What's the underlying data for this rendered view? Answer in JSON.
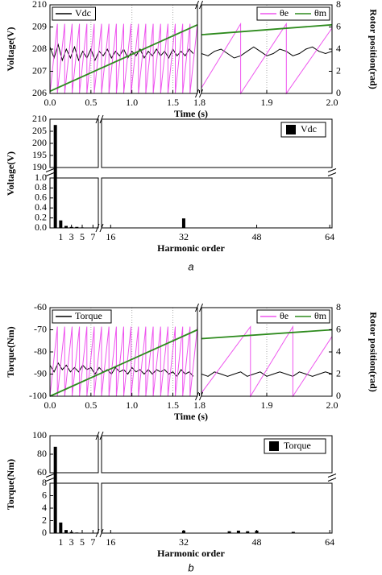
{
  "chart_data": [
    {
      "type": "line",
      "xlabel": "Time (s)",
      "ylabel": "Voltage(V)",
      "y2label": "Rotor position(rad)",
      "xsegments": [
        [
          0,
          1.8
        ],
        [
          1.8,
          2.0
        ]
      ],
      "xticks": [
        {
          "value": 0,
          "label": "0.0"
        },
        0.5,
        {
          "value": 1,
          "label": "1.0"
        },
        1.5,
        1.8,
        1.9,
        {
          "value": 2,
          "label": "2.0"
        }
      ],
      "ylim": [
        206,
        210
      ],
      "yticks": [
        206,
        207,
        208,
        209,
        210
      ],
      "y2lim": [
        0,
        8
      ],
      "y2ticks": [
        0,
        2,
        4,
        6,
        8
      ],
      "grid": "x",
      "series": [
        {
          "name": "Vdc",
          "color": "#000000",
          "axis": "y",
          "x": [
            0,
            0.05,
            0.1,
            0.15,
            0.2,
            0.25,
            0.3,
            0.35,
            0.4,
            0.45,
            0.5,
            0.55,
            0.6,
            0.65,
            0.7,
            0.75,
            0.8,
            0.85,
            0.9,
            0.95,
            1.0,
            1.05,
            1.1,
            1.15,
            1.2,
            1.25,
            1.3,
            1.35,
            1.4,
            1.45,
            1.5,
            1.55,
            1.6,
            1.65,
            1.7,
            1.75,
            1.8,
            1.8,
            1.81,
            1.82,
            1.83,
            1.84,
            1.85,
            1.86,
            1.87,
            1.88,
            1.89,
            1.9,
            1.91,
            1.92,
            1.93,
            1.94,
            1.95,
            1.96,
            1.97,
            1.98,
            1.99,
            2.0
          ],
          "values": [
            208.1,
            207.6,
            208.2,
            207.5,
            208.0,
            207.6,
            208.1,
            207.5,
            207.9,
            207.6,
            208.0,
            207.5,
            207.9,
            207.7,
            208.0,
            207.6,
            207.9,
            207.7,
            208.0,
            207.6,
            207.9,
            207.7,
            208.0,
            207.6,
            207.9,
            207.7,
            208.0,
            207.7,
            207.9,
            207.6,
            208.0,
            207.7,
            207.9,
            207.7,
            208.0,
            207.8,
            null,
            207.8,
            207.7,
            207.9,
            208.0,
            207.8,
            207.6,
            207.7,
            207.9,
            208.1,
            207.9,
            207.7,
            207.8,
            208.0,
            207.9,
            207.7,
            207.8,
            208.0,
            208.1,
            207.9,
            207.8,
            207.9
          ]
        },
        {
          "name": "θe",
          "color": "#ee55ee",
          "axis": "y2",
          "x": [
            0,
            0.09,
            0.09,
            0.18,
            0.18,
            0.27,
            0.27,
            0.36,
            0.36,
            0.45,
            0.45,
            0.54,
            0.54,
            0.63,
            0.63,
            0.72,
            0.72,
            0.81,
            0.81,
            0.9,
            0.9,
            0.99,
            0.99,
            1.08,
            1.08,
            1.17,
            1.17,
            1.26,
            1.26,
            1.35,
            1.35,
            1.44,
            1.44,
            1.53,
            1.53,
            1.62,
            1.62,
            1.71,
            1.71,
            1.8,
            1.8,
            1.8,
            1.86,
            1.86,
            1.93,
            1.93,
            2.0
          ],
          "values": [
            0,
            6.28,
            0,
            6.28,
            0,
            6.28,
            0,
            6.28,
            0,
            6.28,
            0,
            6.28,
            0,
            6.28,
            0,
            6.28,
            0,
            6.28,
            0,
            6.28,
            0,
            6.28,
            0,
            6.28,
            0,
            6.28,
            0,
            6.28,
            0,
            6.28,
            0,
            6.28,
            0,
            6.28,
            0,
            6.28,
            0,
            6.28,
            0,
            6.28,
            null,
            0.5,
            6.28,
            0,
            6.28,
            0,
            5.9
          ]
        },
        {
          "name": "θm",
          "color": "#2e8b1e",
          "axis": "y2",
          "x": [
            0,
            1.8,
            1.8,
            1.8,
            2.0
          ],
          "values": [
            0.2,
            6.2,
            null,
            5.3,
            6.2
          ]
        }
      ]
    },
    {
      "type": "bar",
      "xlabel": "Harmonic order",
      "ylabel": "Voltage(V)",
      "xsegments": [
        [
          -1,
          8
        ],
        [
          14,
          64.5
        ]
      ],
      "xticks": [
        1,
        3,
        5,
        7,
        16,
        32,
        48,
        64
      ],
      "ysegments": [
        [
          0,
          1
        ],
        [
          190,
          210
        ]
      ],
      "yticks": [
        {
          "value": 0,
          "label": "0.0"
        },
        0.2,
        0.4,
        0.6,
        0.8,
        {
          "value": 1,
          "label": "1.0"
        },
        190,
        195,
        200,
        205,
        210
      ],
      "series": [
        {
          "name": "Vdc",
          "color": "#000000",
          "x": [
            0,
            1,
            2,
            3,
            4,
            5,
            6,
            7,
            16,
            20,
            24,
            28,
            32,
            36,
            40,
            44,
            48,
            52,
            56,
            60,
            64
          ],
          "values": [
            207.6,
            0.15,
            0.04,
            0.02,
            0.02,
            0.01,
            0.005,
            0.005,
            0.005,
            0.005,
            0.005,
            0.005,
            0.19,
            0.005,
            0.005,
            0.005,
            0.005,
            0.005,
            0.005,
            0.005,
            0.005
          ]
        }
      ]
    },
    {
      "type": "line",
      "xlabel": "Time (s)",
      "ylabel": "Torque(Nm)",
      "y2label": "Rotor position(rad)",
      "xsegments": [
        [
          0,
          1.8
        ],
        [
          1.8,
          2.0
        ]
      ],
      "xticks": [
        {
          "value": 0,
          "label": "0.0"
        },
        0.5,
        {
          "value": 1,
          "label": "1.0"
        },
        1.5,
        1.8,
        1.9,
        {
          "value": 2,
          "label": "2.0"
        }
      ],
      "ylim": [
        -100,
        -60
      ],
      "yticks": [
        -100,
        -90,
        -80,
        -70,
        -60
      ],
      "y2lim": [
        0,
        8
      ],
      "y2ticks": [
        0,
        2,
        4,
        6,
        8
      ],
      "grid": "x",
      "series": [
        {
          "name": "Torque",
          "color": "#000000",
          "axis": "y",
          "x": [
            0,
            0.05,
            0.1,
            0.15,
            0.2,
            0.25,
            0.3,
            0.35,
            0.4,
            0.45,
            0.5,
            0.55,
            0.6,
            0.65,
            0.7,
            0.75,
            0.8,
            0.85,
            0.9,
            0.95,
            1.0,
            1.05,
            1.1,
            1.15,
            1.2,
            1.25,
            1.3,
            1.35,
            1.4,
            1.45,
            1.5,
            1.55,
            1.6,
            1.65,
            1.7,
            1.75,
            1.8,
            1.8,
            1.81,
            1.82,
            1.83,
            1.84,
            1.85,
            1.86,
            1.87,
            1.88,
            1.89,
            1.9,
            1.91,
            1.92,
            1.93,
            1.94,
            1.95,
            1.96,
            1.97,
            1.98,
            1.99,
            2.0
          ],
          "values": [
            -86,
            -89,
            -85,
            -88,
            -86,
            -89,
            -87,
            -89,
            -86,
            -88,
            -87,
            -90,
            -87,
            -89,
            -88,
            -90,
            -87,
            -89,
            -88,
            -90,
            -87,
            -89,
            -88,
            -90,
            -88,
            -90,
            -88,
            -89,
            -88,
            -90,
            -89,
            -91,
            -88,
            -90,
            -89,
            -91,
            null,
            -90,
            -91,
            -89,
            -90,
            -91,
            -90,
            -89,
            -91,
            -90,
            -89,
            -91,
            -90,
            -89,
            -90,
            -91,
            -89,
            -90,
            -91,
            -90,
            -89,
            -90
          ]
        },
        {
          "name": "θe",
          "color": "#ee55ee",
          "axis": "y2",
          "x": [
            0,
            0.09,
            0.09,
            0.18,
            0.18,
            0.27,
            0.27,
            0.36,
            0.36,
            0.45,
            0.45,
            0.54,
            0.54,
            0.63,
            0.63,
            0.72,
            0.72,
            0.81,
            0.81,
            0.9,
            0.9,
            0.99,
            0.99,
            1.08,
            1.08,
            1.17,
            1.17,
            1.26,
            1.26,
            1.35,
            1.35,
            1.44,
            1.44,
            1.53,
            1.53,
            1.62,
            1.62,
            1.71,
            1.71,
            1.8,
            1.8,
            1.8,
            1.875,
            1.875,
            1.94,
            1.94,
            2.0
          ],
          "values": [
            0,
            6.28,
            0,
            6.28,
            0,
            6.28,
            0,
            6.28,
            0,
            6.28,
            0,
            6.28,
            0,
            6.28,
            0,
            6.28,
            0,
            6.28,
            0,
            6.28,
            0,
            6.28,
            0,
            6.28,
            0,
            6.28,
            0,
            6.28,
            0,
            6.28,
            0,
            6.28,
            0,
            6.28,
            0,
            6.28,
            0,
            6.28,
            0,
            6.28,
            null,
            0.3,
            6.28,
            0,
            6.28,
            0,
            5.4
          ]
        },
        {
          "name": "θm",
          "color": "#2e8b1e",
          "axis": "y2",
          "x": [
            0,
            1.8,
            1.8,
            1.8,
            2.0
          ],
          "values": [
            0,
            6.0,
            null,
            5.2,
            6.0
          ]
        }
      ]
    },
    {
      "type": "bar",
      "xlabel": "Harmonic order",
      "ylabel": "Torque(Nm)",
      "xsegments": [
        [
          -1,
          8
        ],
        [
          14,
          64.5
        ]
      ],
      "xticks": [
        1,
        3,
        5,
        7,
        16,
        32,
        48,
        64
      ],
      "ysegments": [
        [
          0,
          8
        ],
        [
          60,
          100
        ]
      ],
      "yticks": [
        0,
        2,
        4,
        6,
        8,
        60,
        80,
        100
      ],
      "series": [
        {
          "name": "Torque",
          "color": "#000000",
          "x": [
            0,
            1,
            2,
            3,
            4,
            5,
            6,
            7,
            32,
            42,
            44,
            46,
            48,
            56
          ],
          "values": [
            88,
            1.7,
            0.5,
            0.2,
            0.1,
            0.05,
            0.05,
            0.05,
            0.4,
            0.3,
            0.4,
            0.3,
            0.4,
            0.2
          ]
        }
      ]
    }
  ],
  "captions": [
    "a",
    "b"
  ]
}
